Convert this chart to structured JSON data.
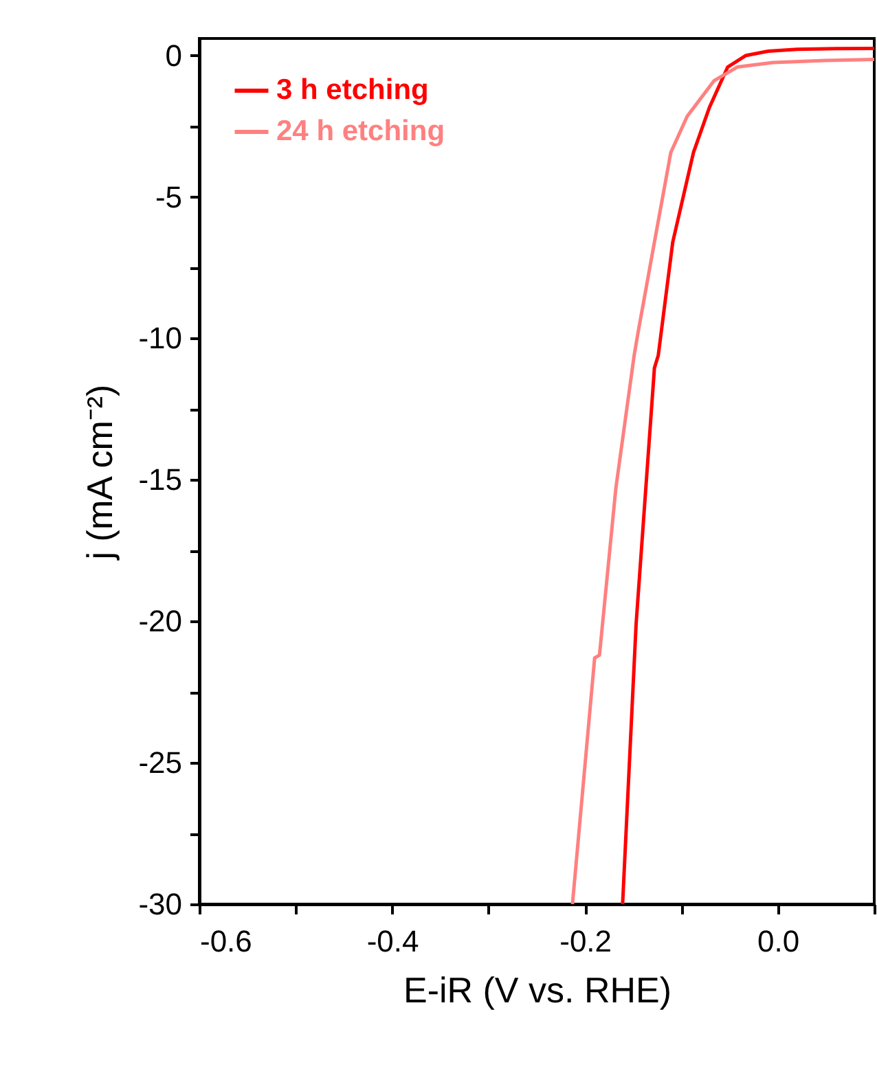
{
  "chart_data": {
    "type": "line",
    "xlabel": "E-iR (V vs. RHE)",
    "ylabel": "j (mA cm⁻²)",
    "xlim": [
      -0.6,
      0.1
    ],
    "xticks": [
      -0.6,
      {
        "value": -0.5,
        "label": null
      },
      -0.4,
      {
        "value": -0.3,
        "label": null
      },
      -0.2,
      {
        "value": -0.1,
        "label": null
      },
      {
        "value": 0,
        "label": "0.0"
      },
      {
        "value": 0.1,
        "label": null
      }
    ],
    "ylim": [
      -30,
      0.6
    ],
    "yticks": [
      -30,
      {
        "value": -27.5,
        "label": null
      },
      -25,
      {
        "value": -22.5,
        "label": null
      },
      -20,
      {
        "value": -17.5,
        "label": null
      },
      -15,
      {
        "value": -12.5,
        "label": null
      },
      -10,
      {
        "value": -7.5,
        "label": null
      },
      -5,
      {
        "value": -2.5,
        "label": null
      },
      0
    ],
    "legend": "top left",
    "grid": false,
    "line_style": "solid",
    "series": [
      {
        "name": "3 h etching",
        "color": "#ff0000",
        "x": [
          -0.161,
          -0.147,
          -0.128,
          -0.124,
          -0.109,
          -0.0875,
          -0.071,
          -0.052,
          -0.033,
          -0.01,
          0.02,
          0.06,
          0.1
        ],
        "values": [
          -30,
          -20.1,
          -11.05,
          -10.6,
          -6.6,
          -3.43,
          -1.84,
          -0.41,
          0.0,
          0.15,
          0.22,
          0.24,
          0.25
        ]
      },
      {
        "name": "24 h etching",
        "color": "#ff8080",
        "x": [
          -0.213,
          -0.19,
          -0.185,
          -0.168,
          -0.149,
          -0.145,
          -0.128,
          -0.111,
          -0.094,
          -0.066,
          -0.042,
          -0.005,
          0.05,
          0.1
        ],
        "values": [
          -30,
          -21.3,
          -21.2,
          -15.3,
          -10.6,
          -9.8,
          -6.6,
          -3.43,
          -2.15,
          -0.89,
          -0.41,
          -0.25,
          -0.18,
          -0.14
        ]
      }
    ]
  }
}
